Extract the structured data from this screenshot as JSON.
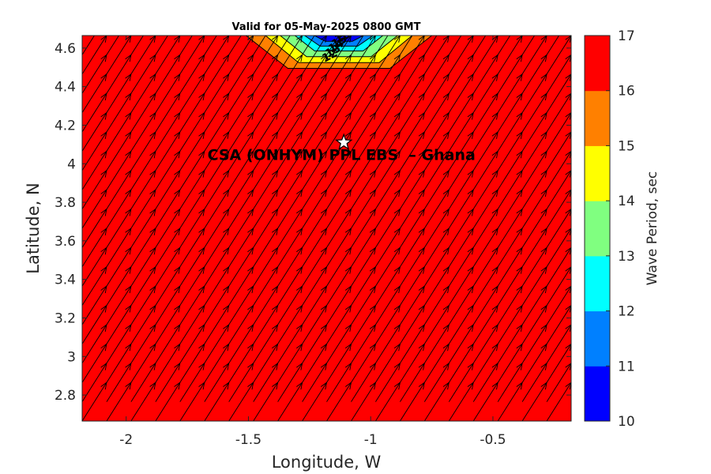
{
  "chart_data": {
    "type": "heatmap",
    "title": "Valid for 05-May-2025 0800 GMT",
    "xlabel": "Longitude, W",
    "ylabel": "Latitude, N",
    "xlim": [
      -2.18,
      -0.18
    ],
    "ylim": [
      2.665,
      4.665
    ],
    "x_ticks": [
      -2,
      -1.5,
      -1,
      -0.5
    ],
    "x_tick_labels": [
      "-2",
      "-1.5",
      "-1",
      "-0.5"
    ],
    "y_ticks": [
      2.8,
      3,
      3.2,
      3.4,
      3.6,
      3.8,
      4,
      4.2,
      4.4,
      4.6
    ],
    "y_tick_labels": [
      "2.8",
      "3",
      "3.2",
      "3.4",
      "3.6",
      "3.8",
      "4",
      "4.2",
      "4.4",
      "4.6"
    ],
    "background_period_sec": 17,
    "contour_levels": [
      10,
      11,
      12,
      13,
      14,
      15,
      16,
      17
    ],
    "contour_labels": [
      "12",
      "13",
      "14",
      "15",
      "16"
    ],
    "low_period_region": {
      "center_lon": -1.13,
      "top_lat": 4.665,
      "min_period_sec": 10,
      "description_levels": [
        {
          "level": 16,
          "half_width_lon": 0.38,
          "depth_lat": 0.17
        },
        {
          "level": 15,
          "half_width_lon": 0.3,
          "depth_lat": 0.14
        },
        {
          "level": 14,
          "half_width_lon": 0.24,
          "depth_lat": 0.11
        },
        {
          "level": 13,
          "half_width_lon": 0.18,
          "depth_lat": 0.08
        },
        {
          "level": 12,
          "half_width_lon": 0.14,
          "depth_lat": 0.055
        },
        {
          "level": 11,
          "half_width_lon": 0.1,
          "depth_lat": 0.03
        }
      ]
    },
    "vectors": {
      "lon_start": -2.18,
      "lon_step": 0.1,
      "lat_start": 2.665,
      "lat_step": 0.1,
      "direction_deg_from_east": 62,
      "arrow_len_lon": 0.1,
      "arrow_len_lat": 0.2
    },
    "station": {
      "lon": -1.11,
      "lat": 4.11,
      "label": "CSA (ONHYM) PPL EBS  – Ghana"
    },
    "colorbar": {
      "label": "Wave Period, sec",
      "min": 10,
      "max": 17,
      "ticks": [
        "10",
        "11",
        "12",
        "13",
        "14",
        "15",
        "16",
        "17"
      ],
      "colors": [
        "#0000ff",
        "#0080ff",
        "#00ffff",
        "#80ff80",
        "#ffff00",
        "#ff8000",
        "#ff0000"
      ]
    },
    "grid": false
  }
}
